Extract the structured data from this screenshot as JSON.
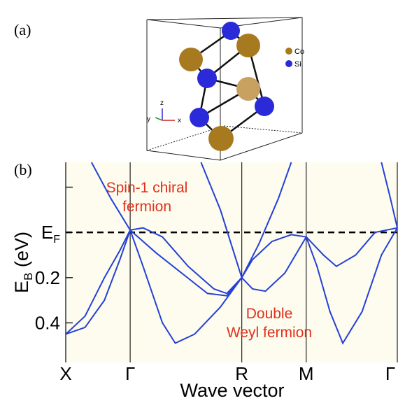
{
  "panel_a": {
    "label": "(a)",
    "legend": [
      "Co",
      "Si"
    ],
    "axes": [
      "z",
      "y",
      "x"
    ]
  },
  "chart_data": {
    "type": "line",
    "panel_label": "(b)",
    "xlabel": "Wave vector",
    "ylabel": {
      "text": "E",
      "sub": "B",
      "rest": " (eV)"
    },
    "xlim": [
      0,
      2.573
    ],
    "ylim": [
      -0.31,
      0.575
    ],
    "y_inverted": true,
    "xticks": [
      {
        "value": 0,
        "label": "X"
      },
      {
        "value": 0.5,
        "label": "Γ"
      },
      {
        "value": 1.366,
        "label": "R"
      },
      {
        "value": 1.866,
        "label": "M"
      },
      {
        "value": 2.573,
        "label": "Γ"
      }
    ],
    "yticks": [
      {
        "value": -0.2,
        "label": null
      },
      {
        "value": 0,
        "label": "E",
        "sub": "F"
      },
      0.2,
      0.4
    ],
    "hline": 0,
    "annotations": [
      {
        "lines": [
          "Spin-1 chiral",
          "fermion"
        ],
        "color": "#e0301e"
      },
      {
        "lines": [
          "Double",
          "Weyl fermion"
        ],
        "color": "#e0301e"
      }
    ],
    "background": "#fdfcee",
    "series": [
      {
        "color": "#2440d8",
        "x": [
          0,
          0.15,
          0.3,
          0.42,
          0.5,
          0.6,
          0.75,
          0.95,
          1.15,
          1.25,
          1.366,
          1.45,
          1.55,
          1.7,
          1.866,
          2.0,
          2.1,
          2.25,
          2.4,
          2.573
        ],
        "values": [
          0.45,
          0.37,
          0.2,
          0.08,
          -0.01,
          -0.02,
          0.02,
          0.15,
          0.25,
          0.27,
          0.2,
          0.25,
          0.26,
          0.18,
          0.02,
          0.1,
          0.15,
          0.1,
          0.0,
          -0.02
        ]
      },
      {
        "color": "#2440d8",
        "x": [
          0,
          0.15,
          0.3,
          0.42,
          0.5,
          0.6,
          0.75,
          0.85,
          1.0,
          1.2,
          1.366,
          1.45,
          1.6,
          1.75,
          1.866,
          1.95,
          2.05,
          2.15,
          2.3,
          2.45,
          2.573
        ],
        "values": [
          0.45,
          0.42,
          0.3,
          0.12,
          -0.01,
          0.15,
          0.4,
          0.49,
          0.45,
          0.33,
          0.2,
          0.12,
          0.04,
          0.01,
          0.02,
          0.15,
          0.35,
          0.49,
          0.35,
          0.1,
          -0.02
        ]
      },
      {
        "color": "#2440d8",
        "x": [
          0.2,
          0.35,
          0.5,
          0.7,
          0.9,
          1.1,
          1.25,
          1.366
        ],
        "values": [
          -0.31,
          -0.15,
          -0.01,
          0.09,
          0.18,
          0.27,
          0.28,
          0.2
        ]
      },
      {
        "color": "#2440d8",
        "x": [
          1.05,
          1.2,
          1.366,
          1.5,
          1.65,
          1.75
        ],
        "values": [
          -0.31,
          -0.1,
          0.2,
          0.05,
          -0.15,
          -0.31
        ]
      },
      {
        "color": "#2440d8",
        "x": [
          2.45,
          2.52,
          2.573
        ],
        "values": [
          -0.31,
          -0.15,
          -0.02
        ]
      }
    ]
  }
}
